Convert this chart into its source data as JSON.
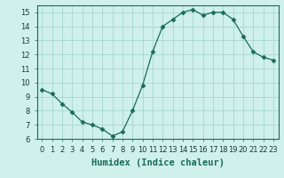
{
  "x": [
    0,
    1,
    2,
    3,
    4,
    5,
    6,
    7,
    8,
    9,
    10,
    11,
    12,
    13,
    14,
    15,
    16,
    17,
    18,
    19,
    20,
    21,
    22,
    23
  ],
  "y": [
    9.5,
    9.2,
    8.5,
    7.9,
    7.2,
    7.0,
    6.7,
    6.2,
    6.5,
    8.0,
    9.8,
    12.2,
    14.0,
    14.5,
    15.0,
    15.2,
    14.8,
    15.0,
    15.0,
    14.5,
    13.3,
    12.2,
    11.8,
    11.6
  ],
  "line_color": "#1a6b5a",
  "marker": "D",
  "marker_size": 2.5,
  "bg_color": "#cff0eb",
  "grid_color": "#a8d8d0",
  "xlabel": "Humidex (Indice chaleur)",
  "ylim": [
    6,
    15.5
  ],
  "xlim": [
    -0.5,
    23.5
  ],
  "yticks": [
    6,
    7,
    8,
    9,
    10,
    11,
    12,
    13,
    14,
    15
  ],
  "xticks": [
    0,
    1,
    2,
    3,
    4,
    5,
    6,
    7,
    8,
    9,
    10,
    11,
    12,
    13,
    14,
    15,
    16,
    17,
    18,
    19,
    20,
    21,
    22,
    23
  ],
  "tick_fontsize": 6,
  "xlabel_fontsize": 7.5
}
